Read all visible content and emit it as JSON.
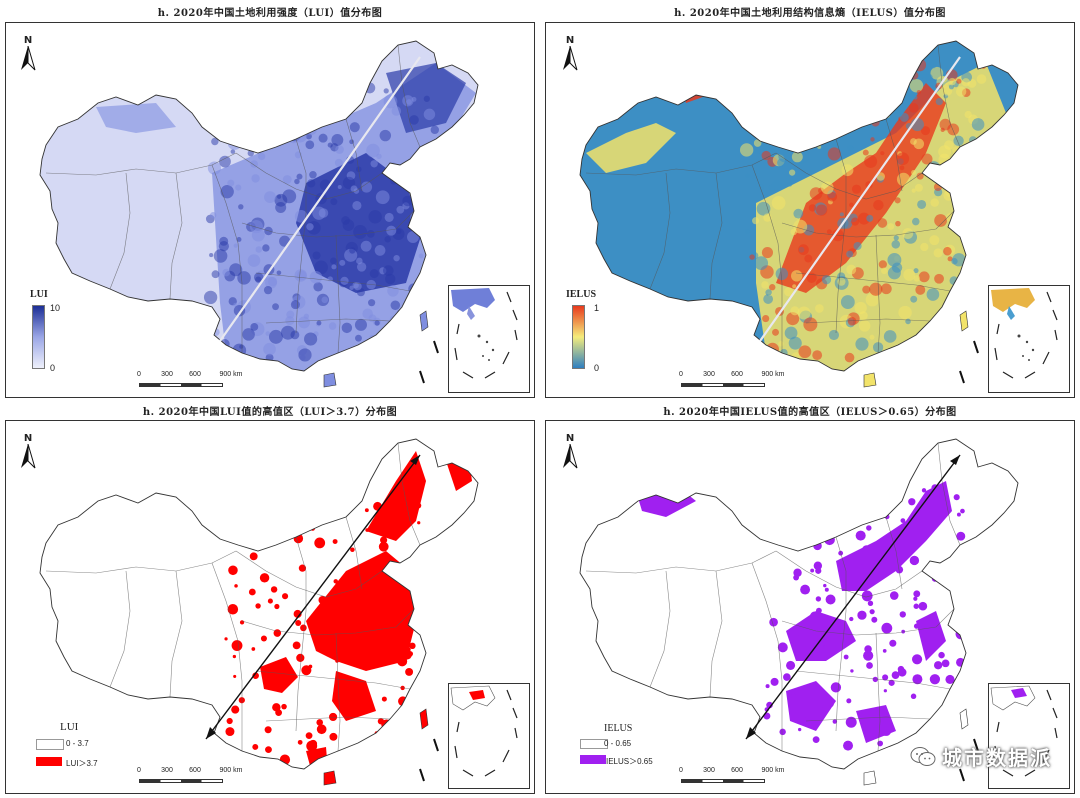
{
  "panels": [
    {
      "id": "lui",
      "title": "h. 2020年中国土地利用强度（LUI）值分布图",
      "legend": {
        "type": "gradient",
        "title": "LUI",
        "max_label": "10",
        "min_label": "0",
        "colors": [
          "#eef0fb",
          "#9aa6e6",
          "#1c2e96"
        ]
      },
      "scale": [
        "0",
        "300",
        "600",
        "900 km"
      ],
      "north": "N"
    },
    {
      "id": "ielus",
      "title": "h. 2020年中国土地利用结构信息熵（IELUS）值分布图",
      "legend": {
        "type": "gradient",
        "title": "IELUS",
        "max_label": "1",
        "min_label": "0",
        "colors": [
          "#2f7fc0",
          "#f4ec7c",
          "#e8391d"
        ]
      },
      "scale": [
        "0",
        "300",
        "600",
        "900 km"
      ],
      "north": "N"
    },
    {
      "id": "lui-high",
      "title": "h. 2020年中国LUI值的高值区（LUI＞3.7）分布图",
      "legend": {
        "type": "classes",
        "title": "LUI",
        "items": [
          {
            "label": "0 - 3.7",
            "color": "#ffffff"
          },
          {
            "label": "LUI＞3.7",
            "color": "#ff0000"
          }
        ]
      },
      "scale": [
        "0",
        "300",
        "600",
        "900 km"
      ],
      "north": "N"
    },
    {
      "id": "ielus-high",
      "title": "h. 2020年中国IELUS值的高值区（IELUS＞0.65）分布图",
      "legend": {
        "type": "classes",
        "title": "IELUS",
        "items": [
          {
            "label": "0 - 0.65",
            "color": "#ffffff"
          },
          {
            "label": "IELUS＞0.65",
            "color": "#a020f0"
          }
        ]
      },
      "scale": [
        "0",
        "300",
        "600",
        "900 km"
      ],
      "north": "N"
    }
  ],
  "watermark": {
    "text": "城市数据派",
    "icon": "wechat-icon"
  },
  "colors": {
    "lui_light": "#d5d9f4",
    "lui_mid": "#7f8ee0",
    "lui_dark": "#2a3aa8",
    "ielus_blue": "#3d8fc4",
    "ielus_yellow": "#f2e36a",
    "ielus_red": "#e8391d",
    "high_red": "#ff0000",
    "high_purple": "#a020f0"
  }
}
